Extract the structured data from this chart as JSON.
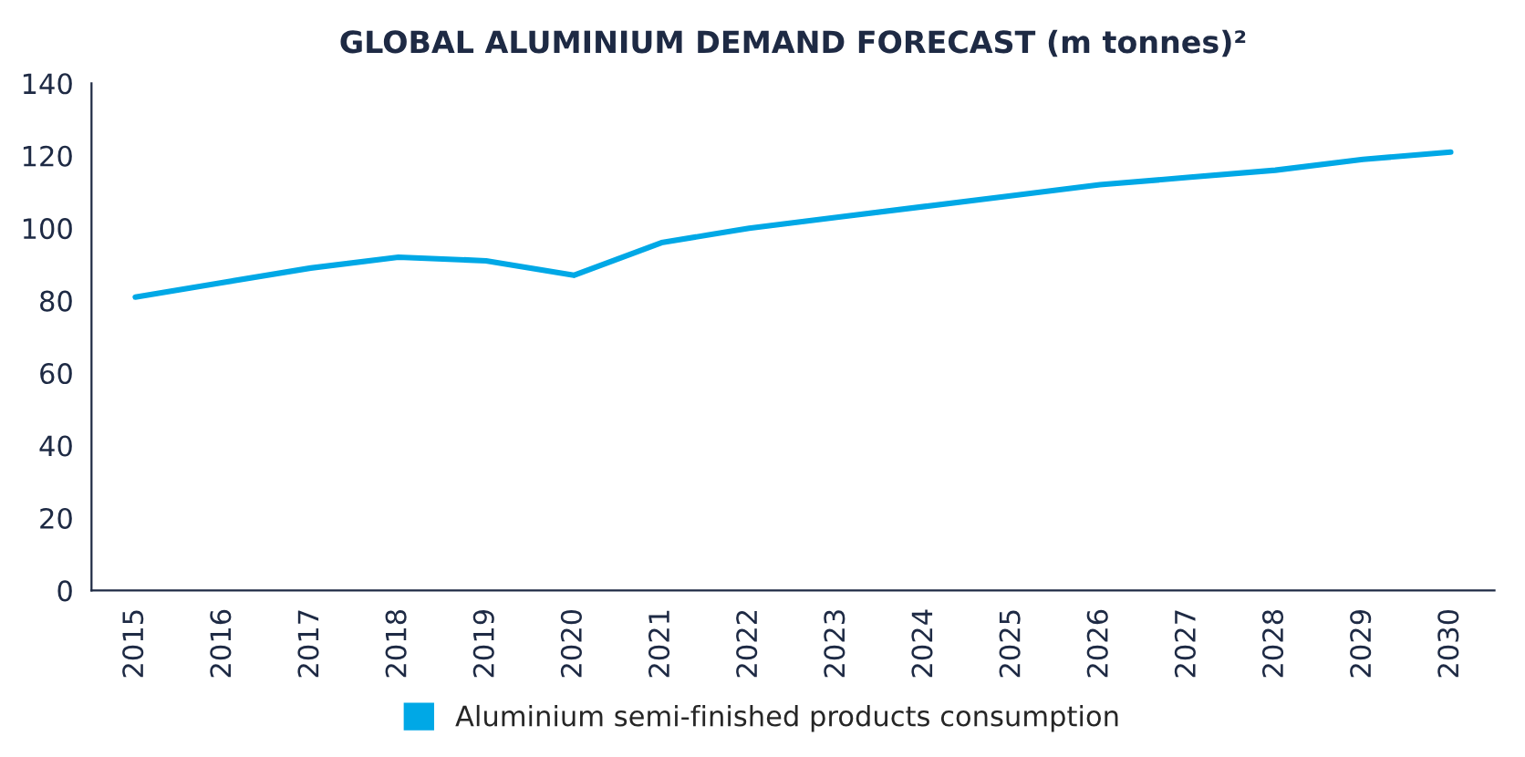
{
  "chart_data": {
    "type": "line",
    "title": "GLOBAL ALUMINIUM DEMAND FORECAST (m tonnes)²",
    "categories": [
      "2015",
      "2016",
      "2017",
      "2018",
      "2019",
      "2020",
      "2021",
      "2022",
      "2023",
      "2024",
      "2025",
      "2026",
      "2027",
      "2028",
      "2029",
      "2030"
    ],
    "series": [
      {
        "name": "Aluminium semi-finished products consumption",
        "color": "#00a8e6",
        "values": [
          81,
          85,
          89,
          92,
          91,
          87,
          96,
          100,
          103,
          106,
          109,
          112,
          114,
          116,
          119,
          121
        ]
      }
    ],
    "ylim": [
      0,
      140
    ],
    "yticks": [
      0,
      20,
      40,
      60,
      80,
      100,
      120,
      140
    ],
    "grid": false,
    "legend": "bottom",
    "marker": "none",
    "line_style": "solid"
  }
}
